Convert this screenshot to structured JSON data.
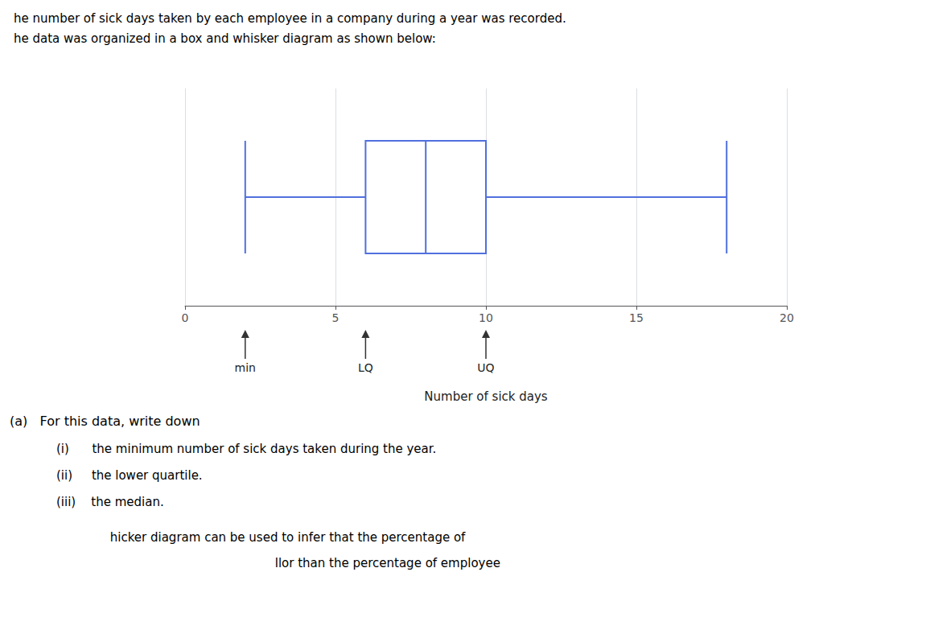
{
  "chart_data": {
    "type": "boxplot",
    "title": "he number of sick days taken by each employee in a company during a year was recorded.",
    "subtitle": "he data was organized in a box and whisker diagram as shown below:",
    "values": [
      2,
      6,
      8,
      10,
      18
    ],
    "xlabel": "Number of sick days",
    "xlim": [
      0,
      20
    ],
    "xticks": [
      0,
      5,
      10,
      15,
      20
    ],
    "grid": true,
    "orientation": "horizontal",
    "annotations": [
      {
        "x": 2,
        "text": "min"
      },
      {
        "x": 6,
        "text": "LQ"
      },
      {
        "x": 10,
        "text": "UQ"
      }
    ],
    "questions": [
      "(a)   For this data, write down",
      "(i)      the minimum number of sick days taken during the year.",
      "(ii)     the lower quartile.",
      "(iii)    the median.",
      "              hicker diagram can be used to infer that the percentage of",
      "                                                         llor than the percentage of employee"
    ]
  }
}
